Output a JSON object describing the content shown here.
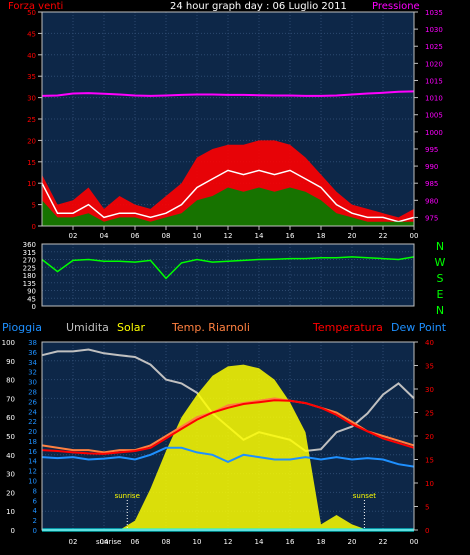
{
  "chart_data": [
    {
      "type": "line",
      "title": "24 hour graph day : 06 Luglio 2011",
      "left_label": "Forza venti",
      "right_label": "Pressione",
      "x_ticks": [
        "02",
        "04",
        "06",
        "08",
        "10",
        "12",
        "14",
        "16",
        "18",
        "20",
        "22",
        "00"
      ],
      "x_range": [
        0,
        24
      ],
      "left_ylim": [
        0,
        50
      ],
      "left_ticks": [
        0,
        5,
        10,
        15,
        20,
        25,
        30,
        35,
        40,
        45,
        50
      ],
      "right_ylim": [
        972.5,
        1035
      ],
      "right_ticks": [
        975,
        980,
        985,
        990,
        995,
        1000,
        1005,
        1010,
        1015,
        1020,
        1025,
        1030,
        1035
      ],
      "grid": true,
      "series": [
        {
          "key": "pressure",
          "axis": "right",
          "color": "#ff00ff",
          "x": [
            0,
            1,
            2,
            3,
            4,
            5,
            6,
            7,
            8,
            9,
            10,
            11,
            12,
            13,
            14,
            15,
            16,
            17,
            18,
            19,
            20,
            21,
            22,
            23,
            24
          ],
          "y": [
            1010.5,
            1010.6,
            1011.2,
            1011.3,
            1011.1,
            1010.9,
            1010.6,
            1010.5,
            1010.6,
            1010.8,
            1010.9,
            1010.9,
            1010.8,
            1010.8,
            1010.7,
            1010.6,
            1010.6,
            1010.5,
            1010.5,
            1010.6,
            1010.9,
            1011.2,
            1011.4,
            1011.7,
            1011.8
          ]
        },
        {
          "key": "gust",
          "axis": "left",
          "color": "#ff0000",
          "x": [
            0,
            1,
            2,
            3,
            4,
            5,
            6,
            7,
            8,
            9,
            10,
            11,
            12,
            13,
            14,
            15,
            16,
            17,
            18,
            19,
            20,
            21,
            22,
            23,
            24
          ],
          "y": [
            12,
            5,
            6,
            9,
            4,
            7,
            5,
            4,
            7,
            10,
            16,
            18,
            19,
            19,
            20,
            20,
            19,
            16,
            12,
            8,
            5,
            4,
            3,
            2,
            4
          ]
        },
        {
          "key": "wind_avg",
          "axis": "left",
          "color": "#ffffff",
          "x": [
            0,
            1,
            2,
            3,
            4,
            5,
            6,
            7,
            8,
            9,
            10,
            11,
            12,
            13,
            14,
            15,
            16,
            17,
            18,
            19,
            20,
            21,
            22,
            23,
            24
          ],
          "y": [
            10,
            3,
            3,
            5,
            2,
            3,
            3,
            2,
            3,
            5,
            9,
            11,
            13,
            12,
            13,
            12,
            13,
            11,
            9,
            5,
            3,
            2,
            2,
            1,
            2
          ]
        },
        {
          "key": "wind_fill",
          "axis": "left",
          "color": "#008000",
          "x": [
            0,
            1,
            2,
            3,
            4,
            5,
            6,
            7,
            8,
            9,
            10,
            11,
            12,
            13,
            14,
            15,
            16,
            17,
            18,
            19,
            20,
            21,
            22,
            23,
            24
          ],
          "y": [
            6,
            2,
            2,
            3,
            1,
            2,
            2,
            1,
            2,
            3,
            6,
            7,
            9,
            8,
            9,
            8,
            9,
            8,
            6,
            3,
            2,
            1,
            1,
            1,
            1
          ]
        }
      ]
    },
    {
      "type": "line",
      "x_ticks": [
        "02",
        "04",
        "06",
        "08",
        "10",
        "12",
        "14",
        "16",
        "18",
        "20",
        "22",
        "00"
      ],
      "x_range": [
        0,
        24
      ],
      "ylim": [
        0,
        360
      ],
      "y_ticks": [
        0,
        45,
        90,
        135,
        180,
        225,
        270,
        315,
        360
      ],
      "compass_labels": [
        "N",
        "W",
        "S",
        "E",
        "N"
      ],
      "series": [
        {
          "key": "direction",
          "color": "#00ff00",
          "x": [
            0,
            1,
            2,
            3,
            4,
            5,
            6,
            7,
            8,
            9,
            10,
            11,
            12,
            13,
            14,
            15,
            16,
            17,
            18,
            19,
            20,
            21,
            22,
            23,
            24
          ],
          "y": [
            270,
            200,
            265,
            270,
            260,
            260,
            255,
            265,
            160,
            250,
            270,
            255,
            260,
            265,
            270,
            272,
            275,
            275,
            280,
            280,
            285,
            280,
            275,
            270,
            285
          ]
        }
      ]
    },
    {
      "type": "area",
      "legend": [
        "Pioggia",
        "Umidita",
        "Solar",
        "Temp. Riarnoli",
        "Temperatura",
        "Dew Point"
      ],
      "x_ticks": [
        "02",
        "04",
        "06",
        "08",
        "10",
        "12",
        "14",
        "16",
        "18",
        "20",
        "22",
        "00"
      ],
      "x_range": [
        0,
        24
      ],
      "left_ylim": [
        0,
        100
      ],
      "left_ticks": [
        0,
        10,
        20,
        30,
        40,
        50,
        60,
        70,
        80,
        90,
        100
      ],
      "inner_ylim": [
        0,
        38
      ],
      "inner_ticks": [
        0,
        2,
        4,
        6,
        8,
        10,
        12,
        14,
        16,
        18,
        20,
        22,
        24,
        26,
        28,
        30,
        32,
        34,
        36,
        38
      ],
      "right_ylim": [
        0,
        40
      ],
      "right_ticks": [
        0,
        5,
        10,
        15,
        20,
        25,
        30,
        35,
        40
      ],
      "annotations": [
        {
          "label": "sunrise",
          "x": 5.5
        },
        {
          "label": "sunset",
          "x": 20.8
        },
        {
          "label": "sunrise",
          "x": 4.3,
          "axis": true
        }
      ],
      "series": [
        {
          "key": "humidity",
          "axis": "left",
          "color": "#c0c0c0",
          "x": [
            0,
            1,
            2,
            3,
            4,
            5,
            6,
            7,
            8,
            9,
            10,
            11,
            12,
            13,
            14,
            15,
            16,
            17,
            18,
            19,
            20,
            21,
            22,
            23,
            24
          ],
          "y": [
            93,
            95,
            95,
            96,
            94,
            93,
            92,
            88,
            80,
            78,
            73,
            62,
            55,
            48,
            52,
            50,
            48,
            42,
            43,
            52,
            55,
            62,
            72,
            78,
            70
          ]
        },
        {
          "key": "solar",
          "axis": "left",
          "color": "#ffff00",
          "x": [
            0,
            1,
            2,
            3,
            4,
            5,
            6,
            7,
            8,
            9,
            10,
            11,
            12,
            13,
            14,
            15,
            16,
            17,
            18,
            19,
            20,
            21,
            22,
            23,
            24
          ],
          "y": [
            0,
            0,
            0,
            0,
            0,
            0,
            5,
            22,
            42,
            60,
            72,
            82,
            87,
            88,
            86,
            80,
            68,
            52,
            3,
            8,
            3,
            0,
            0,
            0,
            0
          ]
        },
        {
          "key": "temp_riarnoli",
          "axis": "right",
          "color": "#ff8040",
          "x": [
            0,
            1,
            2,
            3,
            4,
            5,
            6,
            7,
            8,
            9,
            10,
            11,
            12,
            13,
            14,
            15,
            16,
            17,
            18,
            19,
            20,
            21,
            22,
            23,
            24
          ],
          "y": [
            18,
            17.5,
            17,
            17,
            16.5,
            17,
            17,
            18,
            20,
            22,
            24,
            25,
            26.5,
            27,
            27.5,
            28,
            27.5,
            27,
            26,
            25,
            23,
            21,
            20,
            19,
            18
          ]
        },
        {
          "key": "temperature",
          "axis": "right",
          "color": "#ff0000",
          "x": [
            0,
            1,
            2,
            3,
            4,
            5,
            6,
            7,
            8,
            9,
            10,
            11,
            12,
            13,
            14,
            15,
            16,
            17,
            18,
            19,
            20,
            21,
            22,
            23,
            24
          ],
          "y": [
            17,
            16.8,
            16.5,
            16.3,
            16.2,
            16.5,
            16.8,
            17.5,
            19.5,
            21.5,
            23.5,
            25,
            26,
            26.8,
            27.2,
            27.6,
            27.5,
            27,
            26,
            24.5,
            22.5,
            21,
            19.5,
            18.5,
            17.5
          ]
        },
        {
          "key": "dew_point",
          "axis": "right",
          "color": "#1e90ff",
          "x": [
            0,
            1,
            2,
            3,
            4,
            5,
            6,
            7,
            8,
            9,
            10,
            11,
            12,
            13,
            14,
            15,
            16,
            17,
            18,
            19,
            20,
            21,
            22,
            23,
            24
          ],
          "y": [
            15.5,
            15.3,
            15.5,
            15,
            15.2,
            15.5,
            15,
            16,
            17.5,
            17.5,
            16.5,
            16,
            14.5,
            16,
            15.5,
            15,
            15,
            15.5,
            15,
            15.5,
            15,
            15.3,
            15,
            14,
            13.5
          ]
        },
        {
          "key": "rain",
          "axis": "left",
          "color": "#00ffff",
          "x": [
            0,
            24
          ],
          "y": [
            0,
            0
          ]
        }
      ]
    }
  ]
}
